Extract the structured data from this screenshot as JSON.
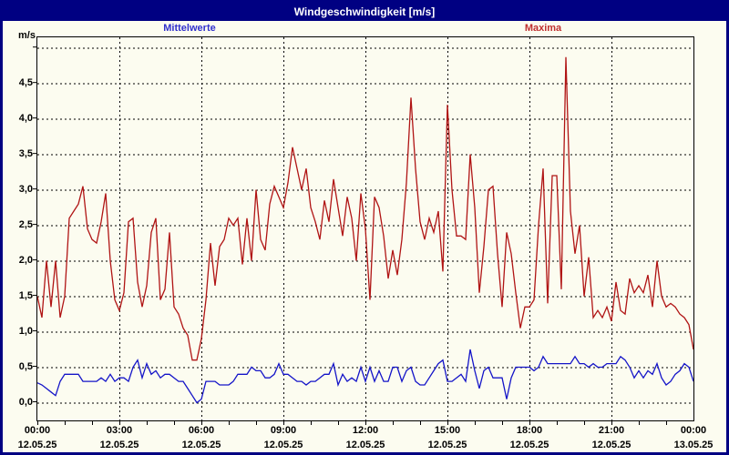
{
  "window": {
    "title": "Windgeschwindigkeit [m/s]"
  },
  "legend": {
    "mean_label": "Mittelwerte",
    "max_label": "Maxima",
    "mean_color": "#1414C8",
    "max_color": "#B01414"
  },
  "axes": {
    "y_unit": "m/s",
    "y_ticks": [
      "0,0",
      "0,5",
      "1,0",
      "1,5",
      "2,0",
      "2,5",
      "3,0",
      "3,5",
      "4,0",
      "4,5"
    ],
    "x_times": [
      "00:00",
      "03:00",
      "06:00",
      "09:00",
      "12:00",
      "15:00",
      "18:00",
      "21:00",
      "00:00"
    ],
    "x_dates": [
      "12.05.25",
      "12.05.25",
      "12.05.25",
      "12.05.25",
      "12.05.25",
      "12.05.25",
      "12.05.25",
      "12.05.25",
      "13.05.25"
    ]
  },
  "chart_data": {
    "type": "line",
    "title": "Windgeschwindigkeit [m/s]",
    "ylabel": "m/s",
    "ylim": [
      -0.25,
      5.15
    ],
    "x_start_hour": 0,
    "x_end_hour": 24,
    "x_step_minutes": 10,
    "grid": "dashed, every 0.5 m/s horizontal, every 3 h vertical",
    "legend_position": "top",
    "series": [
      {
        "name": "Mittelwerte",
        "color": "#1414C8",
        "values": [
          0.28,
          0.25,
          0.2,
          0.15,
          0.1,
          0.3,
          0.4,
          0.4,
          0.4,
          0.4,
          0.3,
          0.3,
          0.3,
          0.3,
          0.35,
          0.3,
          0.4,
          0.3,
          0.35,
          0.35,
          0.3,
          0.5,
          0.6,
          0.35,
          0.55,
          0.4,
          0.45,
          0.35,
          0.4,
          0.4,
          0.35,
          0.3,
          0.3,
          0.2,
          0.1,
          0.0,
          0.05,
          0.3,
          0.3,
          0.3,
          0.25,
          0.25,
          0.25,
          0.3,
          0.4,
          0.4,
          0.4,
          0.5,
          0.45,
          0.45,
          0.35,
          0.35,
          0.4,
          0.55,
          0.4,
          0.4,
          0.35,
          0.3,
          0.3,
          0.25,
          0.3,
          0.3,
          0.35,
          0.4,
          0.4,
          0.55,
          0.25,
          0.4,
          0.3,
          0.35,
          0.3,
          0.5,
          0.3,
          0.5,
          0.3,
          0.45,
          0.3,
          0.3,
          0.5,
          0.5,
          0.3,
          0.45,
          0.5,
          0.3,
          0.25,
          0.25,
          0.35,
          0.45,
          0.55,
          0.6,
          0.3,
          0.3,
          0.35,
          0.4,
          0.3,
          0.75,
          0.45,
          0.2,
          0.45,
          0.5,
          0.35,
          0.35,
          0.35,
          0.05,
          0.35,
          0.5,
          0.5,
          0.5,
          0.5,
          0.45,
          0.5,
          0.65,
          0.55,
          0.55,
          0.55,
          0.55,
          0.55,
          0.55,
          0.65,
          0.55,
          0.55,
          0.5,
          0.55,
          0.5,
          0.5,
          0.55,
          0.55,
          0.55,
          0.65,
          0.6,
          0.5,
          0.35,
          0.45,
          0.35,
          0.45,
          0.4,
          0.55,
          0.35,
          0.25,
          0.3,
          0.4,
          0.45,
          0.55,
          0.5,
          0.3
        ]
      },
      {
        "name": "Maxima",
        "color": "#B01414",
        "values": [
          1.5,
          1.2,
          2.0,
          1.35,
          2.0,
          1.2,
          1.5,
          2.6,
          2.7,
          2.8,
          3.05,
          2.45,
          2.3,
          2.25,
          2.55,
          2.95,
          2.0,
          1.45,
          1.3,
          1.55,
          2.55,
          2.6,
          1.7,
          1.35,
          1.65,
          2.4,
          2.6,
          1.45,
          1.6,
          2.4,
          1.35,
          1.25,
          1.05,
          0.95,
          0.6,
          0.6,
          0.9,
          1.45,
          2.25,
          1.65,
          2.2,
          2.3,
          2.6,
          2.5,
          2.6,
          1.95,
          2.6,
          2.0,
          3.0,
          2.3,
          2.15,
          2.8,
          3.05,
          2.9,
          2.75,
          3.1,
          3.6,
          3.3,
          3.0,
          3.3,
          2.75,
          2.55,
          2.3,
          2.85,
          2.55,
          3.15,
          2.75,
          2.35,
          2.9,
          2.6,
          2.0,
          2.95,
          2.45,
          1.45,
          2.9,
          2.75,
          2.35,
          1.75,
          2.15,
          1.8,
          2.3,
          3.1,
          4.3,
          3.3,
          2.55,
          2.3,
          2.6,
          2.4,
          2.7,
          1.85,
          4.2,
          3.0,
          2.35,
          2.35,
          2.3,
          3.5,
          2.75,
          1.55,
          2.2,
          3.0,
          3.05,
          2.1,
          1.35,
          2.4,
          2.1,
          1.55,
          1.05,
          1.35,
          1.35,
          1.45,
          2.5,
          3.3,
          1.4,
          3.2,
          3.2,
          1.6,
          4.87,
          2.7,
          2.1,
          2.5,
          1.5,
          2.05,
          1.2,
          1.3,
          1.2,
          1.35,
          1.15,
          1.7,
          1.3,
          1.25,
          1.75,
          1.55,
          1.65,
          1.55,
          1.8,
          1.35,
          2.0,
          1.5,
          1.35,
          1.4,
          1.35,
          1.25,
          1.2,
          1.1,
          0.75
        ]
      }
    ]
  }
}
